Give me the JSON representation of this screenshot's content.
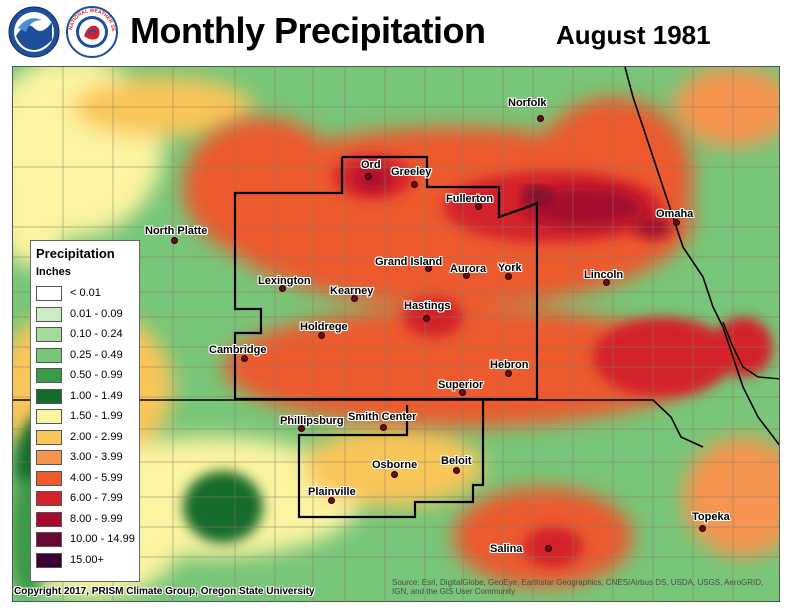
{
  "header": {
    "title": "Monthly Precipitation",
    "date": "August 1981"
  },
  "logos": {
    "noaa": "noaa-logo",
    "nws": "national-weather-service-logo",
    "nws_text": "NATIONAL WEATHER SERVICE"
  },
  "legend": {
    "title": "Precipitation",
    "units": "Inches",
    "items": [
      {
        "label": "< 0.01",
        "color": "#ffffff"
      },
      {
        "label": "0.01 - 0.09",
        "color": "#c9ecc3"
      },
      {
        "label": "0.10 - 0.24",
        "color": "#a4dc9c"
      },
      {
        "label": "0.25 - 0.49",
        "color": "#78c679"
      },
      {
        "label": "0.50 - 0.99",
        "color": "#3a9a48"
      },
      {
        "label": "1.00 - 1.49",
        "color": "#146c2a"
      },
      {
        "label": "1.50 - 1.99",
        "color": "#fbf4a0"
      },
      {
        "label": "2.00 - 2.99",
        "color": "#f9c65a"
      },
      {
        "label": "3.00 - 3.99",
        "color": "#f69550"
      },
      {
        "label": "4.00 - 5.99",
        "color": "#ec5a2e"
      },
      {
        "label": "6.00 - 7.99",
        "color": "#d3222a"
      },
      {
        "label": "8.00 - 9.99",
        "color": "#a50a2e"
      },
      {
        "label": "10.00 - 14.99",
        "color": "#6a0833"
      },
      {
        "label": "15.00+",
        "color": "#3b0033"
      }
    ]
  },
  "cities": [
    {
      "name": "Norfolk"
    },
    {
      "name": "Ord"
    },
    {
      "name": "Greeley"
    },
    {
      "name": "Fullerton"
    },
    {
      "name": "Omaha"
    },
    {
      "name": "North Platte"
    },
    {
      "name": "Grand Island"
    },
    {
      "name": "Aurora"
    },
    {
      "name": "York"
    },
    {
      "name": "Lincoln"
    },
    {
      "name": "Lexington"
    },
    {
      "name": "Kearney"
    },
    {
      "name": "Hastings"
    },
    {
      "name": "Holdrege"
    },
    {
      "name": "Cambridge"
    },
    {
      "name": "Hebron"
    },
    {
      "name": "Superior"
    },
    {
      "name": "Phillipsburg"
    },
    {
      "name": "Smith Center"
    },
    {
      "name": "Osborne"
    },
    {
      "name": "Beloit"
    },
    {
      "name": "Plainville"
    },
    {
      "name": "Topeka"
    },
    {
      "name": "Salina"
    }
  ],
  "footer": {
    "copyright": "Copyright 2017, PRISM Climate Group, Oregon State University",
    "source": "Source: Esri, DigitalGlobe, GeoEye, Earthstar Geographics, CNES/Airbus DS, USDA, USGS, AeroGRID, IGN, and the GIS User Community"
  }
}
